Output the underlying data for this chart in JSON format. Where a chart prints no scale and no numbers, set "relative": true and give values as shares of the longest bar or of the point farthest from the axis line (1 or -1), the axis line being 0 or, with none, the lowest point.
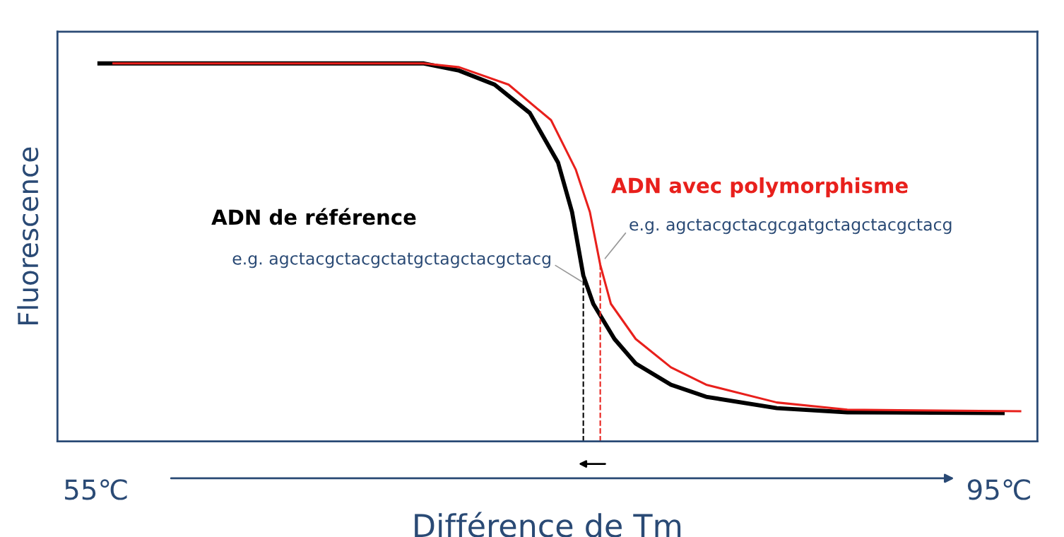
{
  "chart_data": {
    "type": "line",
    "relative": true,
    "xlabel": "Différence de Tm",
    "ylabel": "Fluorescence",
    "xlim": [
      53.3,
      96.7
    ],
    "xticks": [
      {
        "value": 55,
        "label": "55℃"
      },
      {
        "value": 95,
        "label": "95℃"
      }
    ],
    "series": [
      {
        "name": "ADN de référence",
        "color": "#000000",
        "x": [
          55.16,
          69.53,
          71.09,
          72.66,
          74.22,
          75.47,
          76.09,
          76.59,
          77.03,
          77.97,
          78.91,
          80.47,
          82.03,
          85.16,
          88.28,
          95.16
        ],
        "values": [
          1.0,
          1.0,
          0.981,
          0.944,
          0.869,
          0.738,
          0.607,
          0.439,
          0.364,
          0.271,
          0.206,
          0.15,
          0.118,
          0.088,
          0.077,
          0.075
        ]
      },
      {
        "name": "ADN avec polymorphisme",
        "color": "#e8201c",
        "x": [
          55.78,
          69.53,
          71.09,
          73.28,
          75.16,
          76.25,
          76.88,
          77.34,
          77.81,
          78.91,
          80.47,
          82.03,
          85.16,
          88.28,
          95.94
        ],
        "values": [
          1.0,
          1.0,
          0.99,
          0.944,
          0.85,
          0.72,
          0.607,
          0.467,
          0.364,
          0.271,
          0.196,
          0.15,
          0.103,
          0.084,
          0.08
        ]
      }
    ],
    "ref_lines": [
      {
        "axis": "x",
        "value": 76.59,
        "color": "#000000",
        "line_style": "dashed"
      },
      {
        "axis": "x",
        "value": 77.34,
        "color": "#e8201c",
        "line_style": "dashed"
      }
    ],
    "annotations": [
      {
        "text": "e.g. agctacgctacgctatgctagctacgctacg",
        "x": 76.59,
        "y": 0.42
      },
      {
        "text": "e.g. agctacgctacgcgatgctagctacgctacg",
        "x": 77.5,
        "y": 0.48
      }
    ],
    "legend": false,
    "grid": false
  }
}
